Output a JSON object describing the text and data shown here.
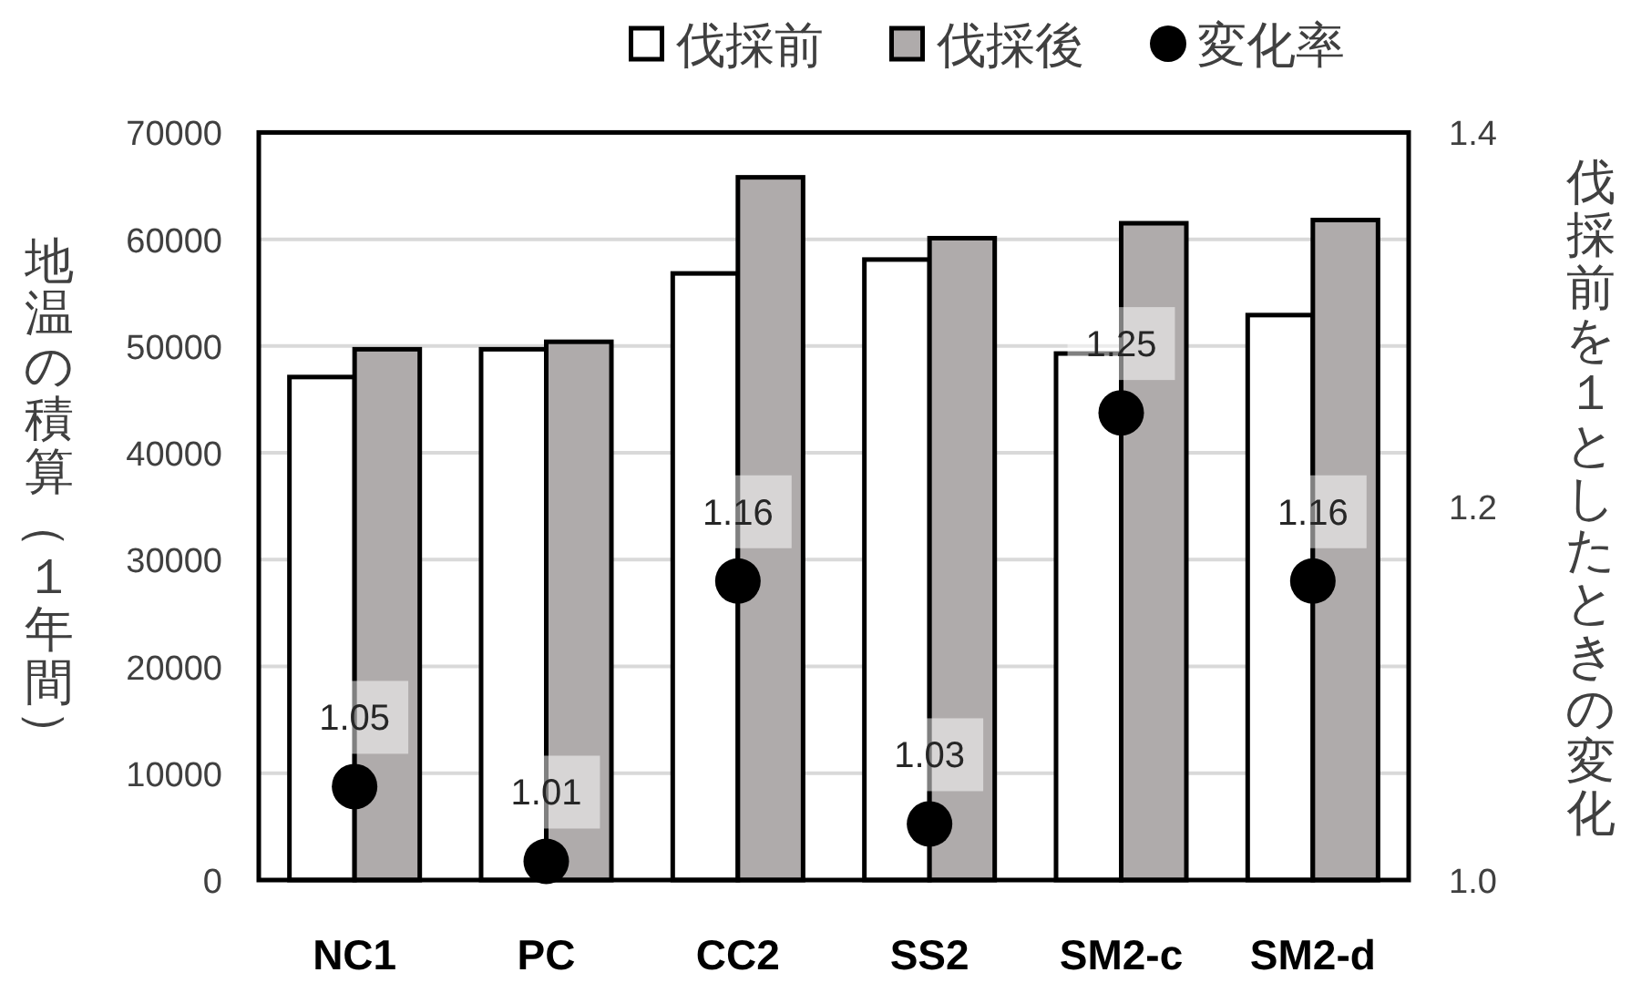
{
  "chart_data": {
    "type": "bar",
    "categories": [
      "NC1",
      "PC",
      "CC2",
      "SS2",
      "SM2-c",
      "SM2-d"
    ],
    "series": [
      {
        "name": "伐採前",
        "color": "#ffffff",
        "values": [
          47100,
          49700,
          56800,
          58100,
          49300,
          52900
        ]
      },
      {
        "name": "伐採後",
        "color": "#afabab",
        "values": [
          49700,
          50400,
          65800,
          60100,
          61500,
          61800
        ]
      },
      {
        "name": "変化率",
        "type": "scatter",
        "axis": "y2",
        "color": "#000000",
        "values": [
          1.05,
          1.01,
          1.16,
          1.03,
          1.25,
          1.16
        ],
        "value_labels": [
          "1.05",
          "1.01",
          "1.16",
          "1.03",
          "1.25",
          "1.16"
        ]
      }
    ],
    "ylabel": "地温の積算（１年間）",
    "y2label": "伐採前を１としたときの変化",
    "ylim": [
      0,
      70000
    ],
    "yticks": [
      0,
      10000,
      20000,
      30000,
      40000,
      50000,
      60000,
      70000
    ],
    "y2lim": [
      1,
      1.4
    ],
    "y2ticks": [
      {
        "value": 1,
        "label": "1.0"
      },
      1.2,
      1.4
    ],
    "grid": "y",
    "legend": "top",
    "marker": "circle"
  }
}
